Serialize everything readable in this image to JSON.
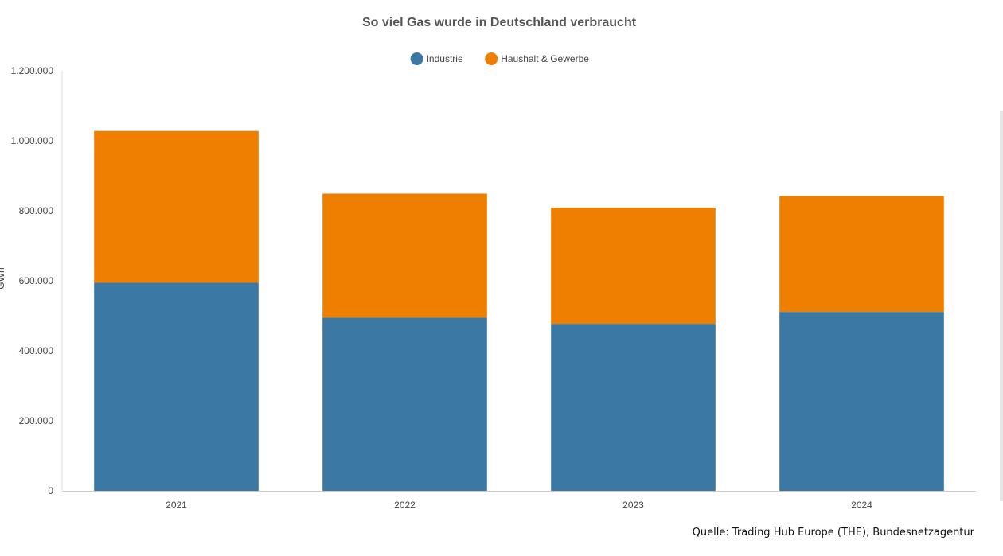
{
  "chart_data": {
    "type": "bar",
    "stacked": true,
    "title": "So viel Gas wurde in Deutschland verbraucht",
    "ylabel": "GWh",
    "xlabel": "",
    "categories": [
      "2021",
      "2022",
      "2023",
      "2024"
    ],
    "series": [
      {
        "name": "Industrie",
        "color": "#3b78a4",
        "values": [
          595000,
          495000,
          477000,
          511000
        ]
      },
      {
        "name": "Haushalt & Gewerbe",
        "color": "#ef7f00",
        "values": [
          433000,
          354000,
          332000,
          331000
        ]
      }
    ],
    "ylim": [
      0,
      1200000
    ],
    "yticks": [
      0,
      200000,
      400000,
      600000,
      800000,
      1000000,
      1200000
    ],
    "ytick_labels": [
      "0",
      "200.000",
      "400.000",
      "600.000",
      "800.000",
      "1.000.000",
      "1.200.000"
    ],
    "legend_position": "top-center",
    "grid": false
  },
  "source": "Quelle: Trading Hub Europe (THE), Bundesnetzagentur"
}
